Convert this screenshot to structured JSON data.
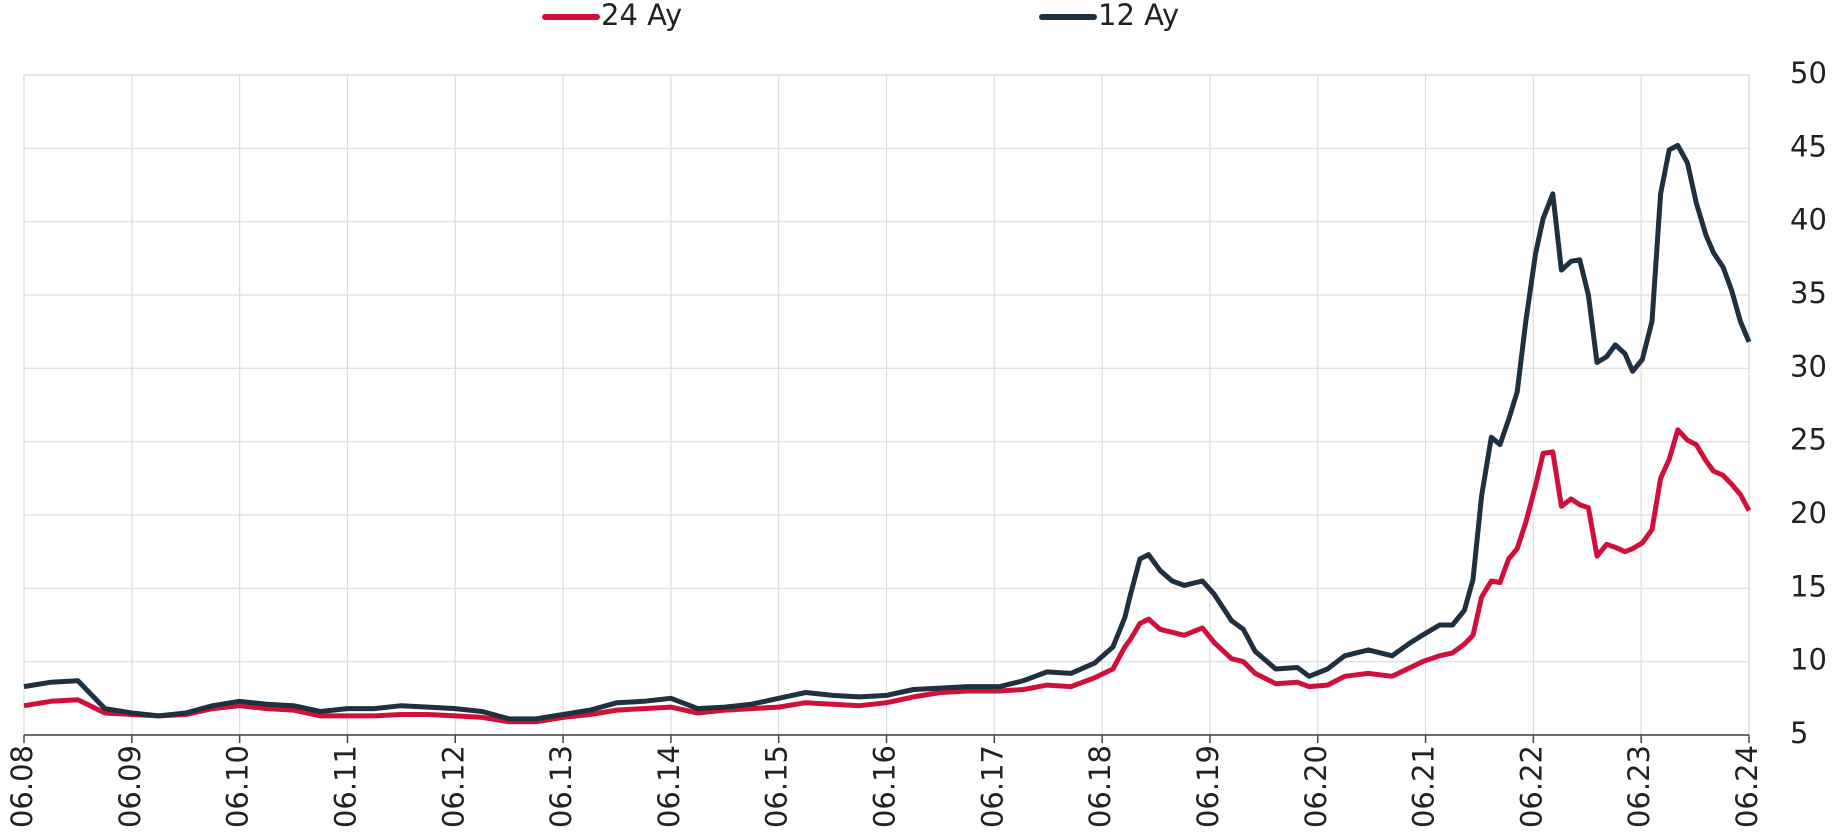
{
  "chart_data": {
    "type": "line",
    "x": [
      2008.5,
      2008.75,
      2009.0,
      2009.25,
      2009.5,
      2009.75,
      2010.0,
      2010.25,
      2010.5,
      2010.75,
      2011.0,
      2011.25,
      2011.5,
      2011.75,
      2012.0,
      2012.25,
      2012.5,
      2012.75,
      2013.0,
      2013.25,
      2013.5,
      2013.75,
      2014.0,
      2014.25,
      2014.5,
      2014.75,
      2015.0,
      2015.25,
      2015.5,
      2015.75,
      2016.0,
      2016.25,
      2016.5,
      2016.75,
      2017.0,
      2017.25,
      2017.55,
      2017.77,
      2017.99,
      2018.21,
      2018.43,
      2018.6,
      2018.71,
      2018.76,
      2018.85,
      2018.93,
      2019.04,
      2019.15,
      2019.26,
      2019.43,
      2019.54,
      2019.7,
      2019.81,
      2019.92,
      2020.11,
      2020.31,
      2020.42,
      2020.59,
      2020.75,
      2020.97,
      2021.19,
      2021.36,
      2021.47,
      2021.63,
      2021.75,
      2021.86,
      2021.94,
      2022.02,
      2022.11,
      2022.19,
      2022.27,
      2022.35,
      2022.43,
      2022.52,
      2022.59,
      2022.68,
      2022.76,
      2022.85,
      2022.93,
      2023.01,
      2023.09,
      2023.18,
      2023.26,
      2023.35,
      2023.42,
      2023.51,
      2023.6,
      2023.68,
      2023.76,
      2023.84,
      2023.93,
      2024.01,
      2024.1,
      2024.17,
      2024.26,
      2024.34,
      2024.42,
      2024.5
    ],
    "series": [
      {
        "name": "24 Ay",
        "color": "#d0103a",
        "values": [
          7.0,
          7.3,
          7.4,
          6.5,
          6.4,
          6.3,
          6.4,
          6.8,
          7.0,
          6.8,
          6.7,
          6.3,
          6.3,
          6.3,
          6.4,
          6.4,
          6.3,
          6.2,
          5.9,
          5.9,
          6.2,
          6.4,
          6.7,
          6.8,
          6.9,
          6.5,
          6.7,
          6.8,
          6.9,
          7.2,
          7.1,
          7.0,
          7.2,
          7.6,
          7.9,
          8.0,
          8.0,
          8.1,
          8.4,
          8.3,
          8.9,
          9.5,
          11.0,
          11.5,
          12.6,
          12.9,
          12.2,
          12.0,
          11.8,
          12.3,
          11.3,
          10.2,
          10.0,
          9.2,
          8.5,
          8.6,
          8.3,
          8.4,
          9.0,
          9.2,
          9.0,
          9.6,
          10.0,
          10.4,
          10.6,
          11.2,
          11.8,
          14.4,
          15.5,
          15.4,
          17.0,
          17.7,
          19.5,
          22.0,
          24.2,
          24.3,
          20.6,
          21.1,
          20.7,
          20.5,
          17.2,
          18.0,
          17.8,
          17.5,
          17.7,
          18.1,
          19.0,
          22.5,
          23.8,
          25.8,
          25.1,
          24.8,
          23.7,
          23.0,
          22.7,
          22.1,
          21.4,
          20.3
        ]
      },
      {
        "name": "12 Ay",
        "color": "#1f3040",
        "values": [
          8.3,
          8.6,
          8.7,
          6.8,
          6.5,
          6.3,
          6.5,
          7.0,
          7.3,
          7.1,
          7.0,
          6.6,
          6.8,
          6.8,
          7.0,
          6.9,
          6.8,
          6.6,
          6.1,
          6.1,
          6.4,
          6.7,
          7.2,
          7.3,
          7.5,
          6.8,
          6.9,
          7.1,
          7.5,
          7.9,
          7.7,
          7.6,
          7.7,
          8.1,
          8.2,
          8.3,
          8.3,
          8.7,
          9.3,
          9.2,
          9.9,
          11.0,
          13.0,
          14.5,
          17.0,
          17.3,
          16.2,
          15.5,
          15.2,
          15.5,
          14.6,
          12.8,
          12.2,
          10.7,
          9.5,
          9.6,
          9.0,
          9.5,
          10.4,
          10.8,
          10.4,
          11.3,
          11.8,
          12.5,
          12.5,
          13.5,
          15.6,
          21.3,
          25.3,
          24.8,
          26.5,
          28.4,
          33.2,
          37.8,
          40.2,
          41.9,
          36.7,
          37.3,
          37.4,
          35.0,
          30.4,
          30.8,
          31.6,
          31.0,
          29.8,
          30.6,
          33.2,
          41.9,
          44.9,
          45.2,
          44.0,
          41.3,
          39.1,
          37.9,
          36.9,
          35.3,
          33.2,
          31.8
        ]
      }
    ],
    "xlim": [
      2008.5,
      2024.5
    ],
    "xticks": [
      {
        "value": 2008.5,
        "label": "06.08"
      },
      {
        "value": 2009.5,
        "label": "06.09"
      },
      {
        "value": 2010.5,
        "label": "06.10"
      },
      {
        "value": 2011.5,
        "label": "06.11"
      },
      {
        "value": 2012.5,
        "label": "06.12"
      },
      {
        "value": 2013.5,
        "label": "06.13"
      },
      {
        "value": 2014.5,
        "label": "06.14"
      },
      {
        "value": 2015.5,
        "label": "06.15"
      },
      {
        "value": 2016.5,
        "label": "06.16"
      },
      {
        "value": 2017.5,
        "label": "06.17"
      },
      {
        "value": 2018.5,
        "label": "06.18"
      },
      {
        "value": 2019.5,
        "label": "06.19"
      },
      {
        "value": 2020.5,
        "label": "06.20"
      },
      {
        "value": 2021.5,
        "label": "06.21"
      },
      {
        "value": 2022.5,
        "label": "06.22"
      },
      {
        "value": 2023.5,
        "label": "06.23"
      },
      {
        "value": 2024.5,
        "label": "06.24"
      }
    ],
    "ylim": [
      5,
      50
    ],
    "yticks": [
      5,
      10,
      15,
      20,
      25,
      30,
      35,
      40,
      45,
      50
    ],
    "grid": true,
    "legend": "top"
  }
}
